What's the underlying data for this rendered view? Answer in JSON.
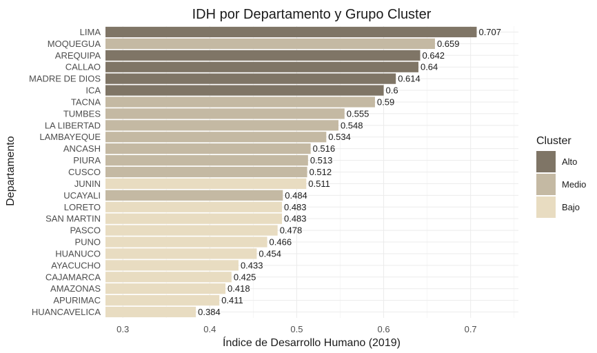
{
  "chart_data": {
    "type": "bar",
    "orientation": "horizontal",
    "title": "IDH por Departamento y Grupo Cluster",
    "xlabel": "Índice de Desarrollo Humano (2019)",
    "ylabel": "Departamento",
    "xlim": [
      0.28,
      0.755
    ],
    "x_ticks": [
      "0.3",
      "0.4",
      "0.5",
      "0.6",
      "0.7"
    ],
    "grid": true,
    "legend": {
      "title": "Cluster",
      "placement": "right",
      "entries": [
        {
          "name": "Alto",
          "color": "#7f7566"
        },
        {
          "name": "Medio",
          "color": "#c4b9a3"
        },
        {
          "name": "Bajo",
          "color": "#e8dcc1"
        }
      ]
    },
    "categories": [
      "LIMA",
      "MOQUEGUA",
      "AREQUIPA",
      "CALLAO",
      "MADRE DE DIOS",
      "ICA",
      "TACNA",
      "TUMBES",
      "LA LIBERTAD",
      "LAMBAYEQUE",
      "ANCASH",
      "PIURA",
      "CUSCO",
      "JUNIN",
      "UCAYALI",
      "LORETO",
      "SAN MARTIN",
      "PASCO",
      "PUNO",
      "HUANUCO",
      "AYACUCHO",
      "CAJAMARCA",
      "AMAZONAS",
      "APURIMAC",
      "HUANCAVELICA"
    ],
    "values": [
      0.707,
      0.659,
      0.642,
      0.64,
      0.614,
      0.6,
      0.59,
      0.555,
      0.548,
      0.534,
      0.516,
      0.513,
      0.512,
      0.511,
      0.484,
      0.483,
      0.483,
      0.478,
      0.466,
      0.454,
      0.433,
      0.425,
      0.418,
      0.411,
      0.384
    ],
    "value_labels": [
      "0.707",
      "0.659",
      "0.642",
      "0.64",
      "0.614",
      "0.6",
      "0.59",
      "0.555",
      "0.548",
      "0.534",
      "0.516",
      "0.513",
      "0.512",
      "0.511",
      "0.484",
      "0.483",
      "0.483",
      "0.478",
      "0.466",
      "0.454",
      "0.433",
      "0.425",
      "0.418",
      "0.411",
      "0.384"
    ],
    "cluster": [
      "Alto",
      "Medio",
      "Alto",
      "Alto",
      "Alto",
      "Alto",
      "Medio",
      "Medio",
      "Medio",
      "Medio",
      "Medio",
      "Medio",
      "Medio",
      "Bajo",
      "Medio",
      "Bajo",
      "Bajo",
      "Bajo",
      "Bajo",
      "Bajo",
      "Bajo",
      "Bajo",
      "Bajo",
      "Bajo",
      "Bajo"
    ]
  }
}
